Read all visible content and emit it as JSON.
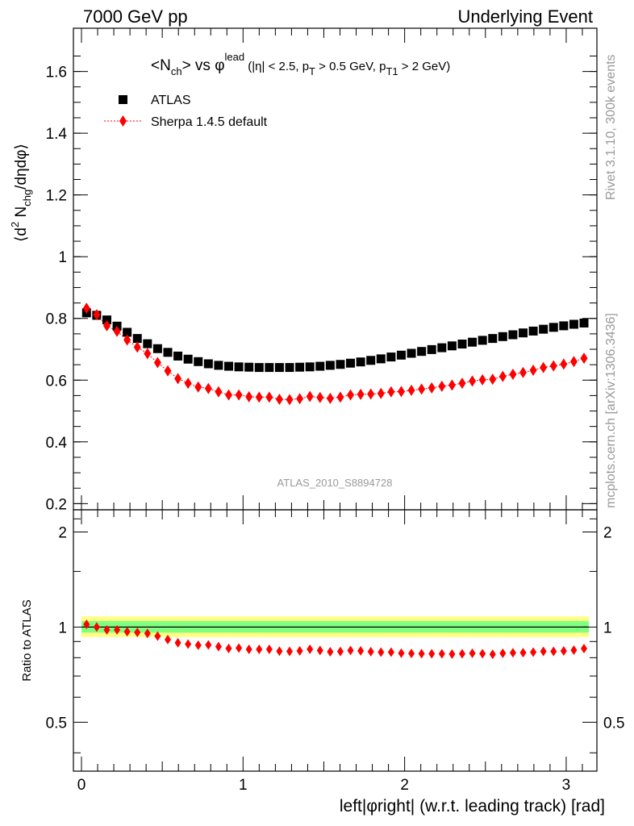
{
  "header": {
    "left": "7000 GeV pp",
    "right": "Underlying Event"
  },
  "side": {
    "rivet": "Rivet 3.1.10,  300k events",
    "mcplots": "mcplots.cern.ch [arXiv:1306.3436]"
  },
  "title": {
    "n": "<N",
    "n_sub": "ch",
    "vs": "> vs ",
    "phi": "φ",
    "phi_sup": "lead",
    "cuts_a": " (|η| < 2.5, p",
    "cuts_a_sub": "T",
    "cuts_b": " > 0.5 GeV, p",
    "cuts_b_sub": "T1",
    "cuts_c": " > 2 GeV)"
  },
  "ylabel": {
    "a": "⟨d",
    "a_sup": "2",
    "b": " N",
    "b_sub": "chg",
    "c": "/dηdφ⟩"
  },
  "ratio_ylabel": "Ratio to ATLAS",
  "xlabel": "left|φright| (w.r.t. leading track) [rad]",
  "watermark": "ATLAS_2010_S8894728",
  "legend": {
    "data": "ATLAS",
    "mc": "Sherpa 1.4.5 default"
  },
  "colors": {
    "data": "#000000",
    "mc": "#ff0000",
    "band_outer": "#ffff80",
    "band_inner": "#80ff80"
  },
  "chart_data": {
    "type": "scatter",
    "xlim": [
      -0.05,
      3.19
    ],
    "ylim": [
      0.18,
      1.74
    ],
    "ratio_ylim": [
      0.35,
      2.35
    ],
    "ratio_log_scale": true,
    "x_ticks": [
      "0",
      "1",
      "2",
      "3"
    ],
    "x_tick_values": [
      0,
      1,
      2,
      3
    ],
    "y_ticks": [
      "0.2",
      "0.4",
      "0.6",
      "0.8",
      "1",
      "1.2",
      "1.4",
      "1.6"
    ],
    "y_tick_values": [
      0.2,
      0.4,
      0.6,
      0.8,
      1.0,
      1.2,
      1.4,
      1.6
    ],
    "ratio_ticks": [
      "0.5",
      "1",
      "2"
    ],
    "ratio_tick_values": [
      0.5,
      1,
      2
    ],
    "x": [
      0.0314,
      0.0942,
      0.1571,
      0.2199,
      0.2827,
      0.3456,
      0.4084,
      0.4712,
      0.5341,
      0.5969,
      0.6597,
      0.7226,
      0.7854,
      0.8482,
      0.9111,
      0.9739,
      1.0367,
      1.0996,
      1.1624,
      1.2252,
      1.2881,
      1.3509,
      1.4137,
      1.4765,
      1.5394,
      1.6022,
      1.665,
      1.7279,
      1.7907,
      1.8535,
      1.9164,
      1.9792,
      2.042,
      2.1049,
      2.1677,
      2.2305,
      2.2934,
      2.3562,
      2.419,
      2.4819,
      2.5447,
      2.6075,
      2.6704,
      2.7332,
      2.796,
      2.8588,
      2.9217,
      2.9845,
      3.0473,
      3.1102
    ],
    "series": [
      {
        "name": "ATLAS",
        "values": [
          0.818,
          0.81,
          0.795,
          0.775,
          0.755,
          0.735,
          0.718,
          0.702,
          0.69,
          0.678,
          0.668,
          0.66,
          0.653,
          0.648,
          0.645,
          0.643,
          0.642,
          0.641,
          0.641,
          0.641,
          0.641,
          0.642,
          0.643,
          0.645,
          0.648,
          0.651,
          0.655,
          0.659,
          0.664,
          0.669,
          0.675,
          0.681,
          0.687,
          0.693,
          0.699,
          0.705,
          0.711,
          0.717,
          0.723,
          0.729,
          0.735,
          0.741,
          0.747,
          0.753,
          0.759,
          0.765,
          0.771,
          0.776,
          0.781,
          0.785
        ]
      },
      {
        "name": "Sherpa 1.4.5 default",
        "values": [
          0.833,
          0.812,
          0.776,
          0.758,
          0.73,
          0.707,
          0.686,
          0.657,
          0.63,
          0.605,
          0.59,
          0.578,
          0.573,
          0.562,
          0.552,
          0.552,
          0.546,
          0.545,
          0.545,
          0.538,
          0.537,
          0.54,
          0.547,
          0.544,
          0.541,
          0.545,
          0.552,
          0.554,
          0.555,
          0.557,
          0.562,
          0.563,
          0.567,
          0.571,
          0.575,
          0.58,
          0.584,
          0.59,
          0.597,
          0.601,
          0.603,
          0.612,
          0.619,
          0.625,
          0.632,
          0.641,
          0.646,
          0.652,
          0.66,
          0.671
        ]
      }
    ],
    "ratio": [
      1.02,
      1.0,
      0.98,
      0.98,
      0.967,
      0.962,
      0.955,
      0.936,
      0.913,
      0.892,
      0.883,
      0.876,
      0.878,
      0.867,
      0.856,
      0.858,
      0.85,
      0.85,
      0.85,
      0.839,
      0.838,
      0.841,
      0.851,
      0.843,
      0.835,
      0.837,
      0.843,
      0.841,
      0.836,
      0.833,
      0.833,
      0.827,
      0.825,
      0.824,
      0.823,
      0.823,
      0.821,
      0.823,
      0.826,
      0.824,
      0.82,
      0.826,
      0.829,
      0.83,
      0.833,
      0.838,
      0.838,
      0.84,
      0.845,
      0.855
    ],
    "ratio_band_outer": [
      0.93,
      1.08
    ],
    "ratio_band_inner": [
      0.96,
      1.045
    ]
  }
}
